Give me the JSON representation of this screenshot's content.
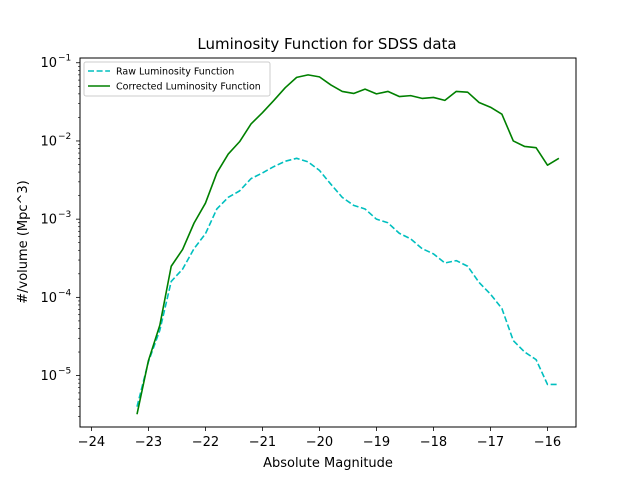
{
  "chart_data": {
    "type": "line",
    "title": "Luminosity Function for SDSS data",
    "xlabel": "Absolute Magnitude",
    "ylabel": "#/volume (Mpc^3)",
    "xlim": [
      -24.2,
      -15.5
    ],
    "ylim": [
      2.2e-06,
      0.115
    ],
    "yscale": "log",
    "grid": false,
    "legend_position": "top-left",
    "x_ticks": [
      -24,
      -23,
      -22,
      -21,
      -20,
      -19,
      -18,
      -17,
      -16
    ],
    "x_tick_labels": [
      "−24",
      "−23",
      "−22",
      "−21",
      "−20",
      "−19",
      "−18",
      "−17",
      "−16"
    ],
    "y_ticks": [
      {
        "value": 1e-05,
        "base": "10",
        "exp": "−5"
      },
      {
        "value": 0.0001,
        "base": "10",
        "exp": "−4"
      },
      {
        "value": 0.001,
        "base": "10",
        "exp": "−3"
      },
      {
        "value": 0.01,
        "base": "10",
        "exp": "−2"
      },
      {
        "value": 0.1,
        "base": "10",
        "exp": "−1"
      }
    ],
    "series": [
      {
        "name": "Raw Luminosity Function",
        "color": "#00bfbf",
        "style": "dashed",
        "x": [
          -23.2,
          -23.0,
          -22.8,
          -22.6,
          -22.4,
          -22.2,
          -22.0,
          -21.8,
          -21.6,
          -21.4,
          -21.2,
          -21.0,
          -20.8,
          -20.6,
          -20.4,
          -20.2,
          -20.0,
          -19.8,
          -19.6,
          -19.4,
          -19.2,
          -19.0,
          -18.8,
          -18.6,
          -18.4,
          -18.2,
          -18.0,
          -17.8,
          -17.6,
          -17.4,
          -17.2,
          -17.0,
          -16.8,
          -16.6,
          -16.4,
          -16.2,
          -16.0,
          -15.8
        ],
        "y": [
          4e-06,
          1.5e-05,
          3.8e-05,
          0.00016,
          0.00023,
          0.00042,
          0.00065,
          0.00135,
          0.0019,
          0.0023,
          0.0033,
          0.0039,
          0.0047,
          0.0055,
          0.006,
          0.0054,
          0.0042,
          0.0028,
          0.0019,
          0.0015,
          0.00135,
          0.001,
          0.0009,
          0.00066,
          0.00056,
          0.00042,
          0.00036,
          0.000275,
          0.000295,
          0.00025,
          0.000155,
          0.00011,
          7.2e-05,
          2.8e-05,
          2e-05,
          1.6e-05,
          7.7e-06,
          7.7e-06
        ]
      },
      {
        "name": "Corrected Luminosity Function",
        "color": "#008000",
        "style": "solid",
        "x": [
          -23.2,
          -23.0,
          -22.8,
          -22.6,
          -22.4,
          -22.2,
          -22.0,
          -21.8,
          -21.6,
          -21.4,
          -21.2,
          -21.0,
          -20.8,
          -20.6,
          -20.4,
          -20.2,
          -20.0,
          -19.8,
          -19.6,
          -19.4,
          -19.2,
          -19.0,
          -18.8,
          -18.6,
          -18.4,
          -18.2,
          -18.0,
          -17.8,
          -17.6,
          -17.4,
          -17.2,
          -17.0,
          -16.8,
          -16.6,
          -16.4,
          -16.2,
          -16.0,
          -15.8
        ],
        "y": [
          3.2e-06,
          1.55e-05,
          4.4e-05,
          0.00025,
          0.00041,
          0.00089,
          0.0016,
          0.0039,
          0.0068,
          0.0098,
          0.0165,
          0.023,
          0.033,
          0.048,
          0.065,
          0.07,
          0.066,
          0.052,
          0.043,
          0.0405,
          0.046,
          0.04,
          0.043,
          0.037,
          0.038,
          0.035,
          0.036,
          0.033,
          0.043,
          0.042,
          0.031,
          0.027,
          0.022,
          0.01,
          0.0085,
          0.0082,
          0.0049,
          0.006
        ]
      }
    ]
  }
}
